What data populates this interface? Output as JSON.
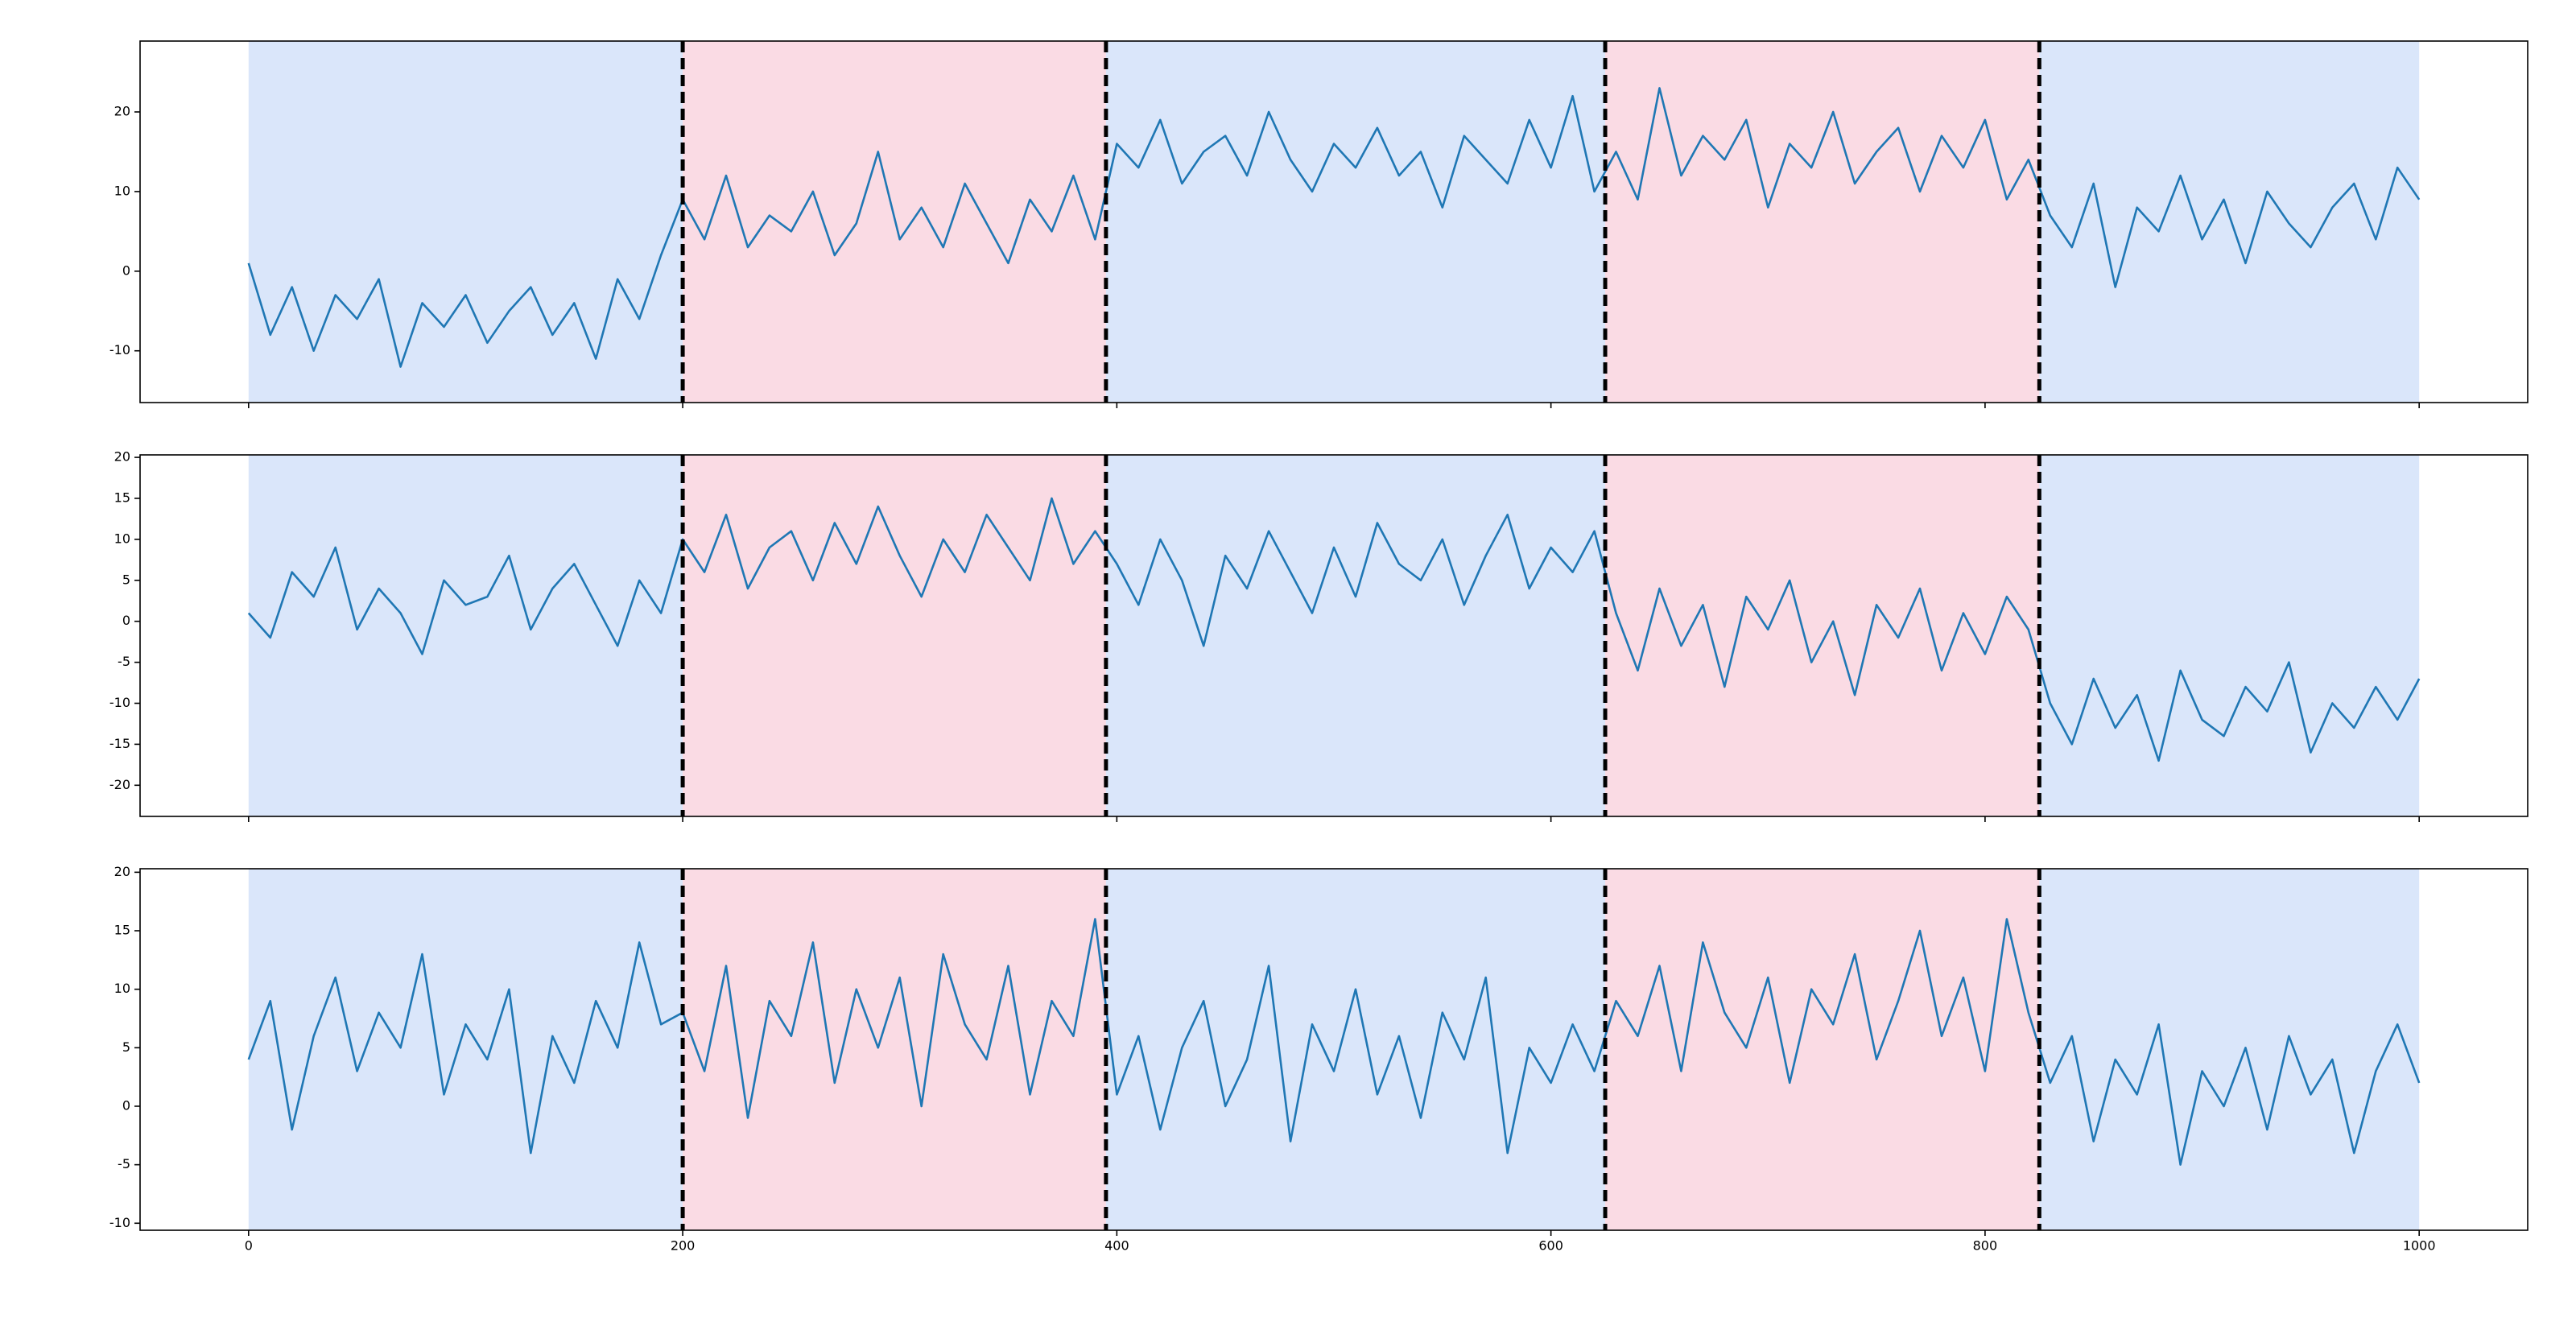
{
  "chart_data": [
    {
      "type": "line",
      "xlim": [
        -50,
        1050
      ],
      "ylim": [
        -16.5,
        28.9
      ],
      "yticks": [
        -10,
        0,
        10,
        20
      ],
      "breakpoints": [
        200,
        395,
        625,
        825,
        1000
      ],
      "region_colors": [
        "#dae6fa",
        "#fadbe4"
      ],
      "x": [
        0,
        10,
        20,
        30,
        40,
        50,
        60,
        70,
        80,
        90,
        100,
        110,
        120,
        130,
        140,
        150,
        160,
        170,
        180,
        190,
        200,
        210,
        220,
        230,
        240,
        250,
        260,
        270,
        280,
        290,
        300,
        310,
        320,
        330,
        340,
        350,
        360,
        370,
        380,
        390,
        400,
        410,
        420,
        430,
        440,
        450,
        460,
        470,
        480,
        490,
        500,
        510,
        520,
        530,
        540,
        550,
        560,
        570,
        580,
        590,
        600,
        610,
        620,
        630,
        640,
        650,
        660,
        670,
        680,
        690,
        700,
        710,
        720,
        730,
        740,
        750,
        760,
        770,
        780,
        790,
        800,
        810,
        820,
        830,
        840,
        850,
        860,
        870,
        880,
        890,
        900,
        910,
        920,
        930,
        940,
        950,
        960,
        970,
        980,
        990,
        1000
      ],
      "series": [
        {
          "color": "#1f77b4",
          "values": [
            1,
            -8,
            -2,
            -10,
            -3,
            -6,
            -1,
            -12,
            -4,
            -7,
            -3,
            -9,
            -5,
            -2,
            -8,
            -4,
            -11,
            -1,
            -6,
            2,
            9,
            4,
            12,
            3,
            7,
            5,
            10,
            2,
            6,
            15,
            4,
            8,
            3,
            11,
            6,
            1,
            9,
            5,
            12,
            4,
            16,
            13,
            19,
            11,
            15,
            17,
            12,
            20,
            14,
            10,
            16,
            13,
            18,
            12,
            15,
            8,
            17,
            14,
            11,
            19,
            13,
            22,
            10,
            15,
            9,
            23,
            12,
            17,
            14,
            19,
            8,
            16,
            13,
            20,
            11,
            15,
            18,
            10,
            17,
            13,
            19,
            9,
            14,
            7,
            3,
            11,
            -2,
            8,
            5,
            12,
            4,
            9,
            1,
            10,
            6,
            3,
            8,
            11,
            4,
            13,
            9
          ]
        }
      ]
    },
    {
      "type": "line",
      "xlim": [
        -50,
        1050
      ],
      "ylim": [
        -23.8,
        20.3
      ],
      "yticks": [
        -20,
        -15,
        -10,
        -5,
        0,
        5,
        10,
        15,
        20
      ],
      "breakpoints": [
        200,
        395,
        625,
        825,
        1000
      ],
      "region_colors": [
        "#dae6fa",
        "#fadbe4"
      ],
      "x": [
        0,
        10,
        20,
        30,
        40,
        50,
        60,
        70,
        80,
        90,
        100,
        110,
        120,
        130,
        140,
        150,
        160,
        170,
        180,
        190,
        200,
        210,
        220,
        230,
        240,
        250,
        260,
        270,
        280,
        290,
        300,
        310,
        320,
        330,
        340,
        350,
        360,
        370,
        380,
        390,
        400,
        410,
        420,
        430,
        440,
        450,
        460,
        470,
        480,
        490,
        500,
        510,
        520,
        530,
        540,
        550,
        560,
        570,
        580,
        590,
        600,
        610,
        620,
        630,
        640,
        650,
        660,
        670,
        680,
        690,
        700,
        710,
        720,
        730,
        740,
        750,
        760,
        770,
        780,
        790,
        800,
        810,
        820,
        830,
        840,
        850,
        860,
        870,
        880,
        890,
        900,
        910,
        920,
        930,
        940,
        950,
        960,
        970,
        980,
        990,
        1000
      ],
      "series": [
        {
          "color": "#1f77b4",
          "values": [
            1,
            -2,
            6,
            3,
            9,
            -1,
            4,
            1,
            -4,
            5,
            2,
            3,
            8,
            -1,
            4,
            7,
            2,
            -3,
            5,
            1,
            10,
            6,
            13,
            4,
            9,
            11,
            5,
            12,
            7,
            14,
            8,
            3,
            10,
            6,
            13,
            9,
            5,
            15,
            7,
            11,
            7,
            2,
            10,
            5,
            -3,
            8,
            4,
            11,
            6,
            1,
            9,
            3,
            12,
            7,
            5,
            10,
            2,
            8,
            13,
            4,
            9,
            6,
            11,
            1,
            -6,
            4,
            -3,
            2,
            -8,
            3,
            -1,
            5,
            -5,
            0,
            -9,
            2,
            -2,
            4,
            -6,
            1,
            -4,
            3,
            -1,
            -10,
            -15,
            -7,
            -13,
            -9,
            -17,
            -6,
            -12,
            -14,
            -8,
            -11,
            -5,
            -16,
            -10,
            -13,
            -8,
            -12,
            -7
          ]
        }
      ]
    },
    {
      "type": "line",
      "xlim": [
        -50,
        1050
      ],
      "ylim": [
        -10.6,
        20.3
      ],
      "yticks": [
        -10,
        -5,
        0,
        5,
        10,
        15,
        20
      ],
      "xticks": [
        0,
        200,
        400,
        600,
        800,
        1000
      ],
      "breakpoints": [
        200,
        395,
        625,
        825,
        1000
      ],
      "region_colors": [
        "#dae6fa",
        "#fadbe4"
      ],
      "x": [
        0,
        10,
        20,
        30,
        40,
        50,
        60,
        70,
        80,
        90,
        100,
        110,
        120,
        130,
        140,
        150,
        160,
        170,
        180,
        190,
        200,
        210,
        220,
        230,
        240,
        250,
        260,
        270,
        280,
        290,
        300,
        310,
        320,
        330,
        340,
        350,
        360,
        370,
        380,
        390,
        400,
        410,
        420,
        430,
        440,
        450,
        460,
        470,
        480,
        490,
        500,
        510,
        520,
        530,
        540,
        550,
        560,
        570,
        580,
        590,
        600,
        610,
        620,
        630,
        640,
        650,
        660,
        670,
        680,
        690,
        700,
        710,
        720,
        730,
        740,
        750,
        760,
        770,
        780,
        790,
        800,
        810,
        820,
        830,
        840,
        850,
        860,
        870,
        880,
        890,
        900,
        910,
        920,
        930,
        940,
        950,
        960,
        970,
        980,
        990,
        1000
      ],
      "series": [
        {
          "color": "#1f77b4",
          "values": [
            4,
            9,
            -2,
            6,
            11,
            3,
            8,
            5,
            13,
            1,
            7,
            4,
            10,
            -4,
            6,
            2,
            9,
            5,
            14,
            7,
            8,
            3,
            12,
            -1,
            9,
            6,
            14,
            2,
            10,
            5,
            11,
            0,
            13,
            7,
            4,
            12,
            1,
            9,
            6,
            16,
            1,
            6,
            -2,
            5,
            9,
            0,
            4,
            12,
            -3,
            7,
            3,
            10,
            1,
            6,
            -1,
            8,
            4,
            11,
            -4,
            5,
            2,
            7,
            3,
            9,
            6,
            12,
            3,
            14,
            8,
            5,
            11,
            2,
            10,
            7,
            13,
            4,
            9,
            15,
            6,
            11,
            3,
            16,
            8,
            2,
            6,
            -3,
            4,
            1,
            7,
            -5,
            3,
            0,
            5,
            -2,
            6,
            1,
            4,
            -4,
            3,
            7,
            2
          ]
        }
      ]
    }
  ]
}
